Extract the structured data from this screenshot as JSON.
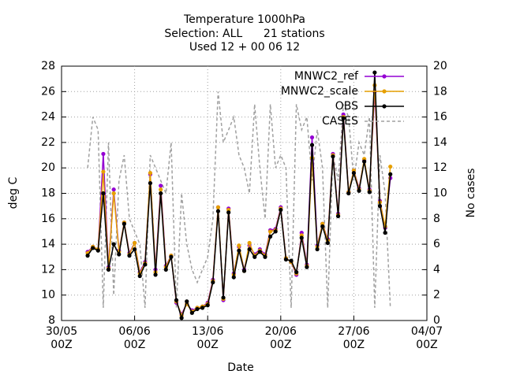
{
  "chart_data": {
    "type": "line",
    "title": [
      "Temperature 1000hPa",
      "Selection: ALL      21 stations",
      "Used 12 + 00 06 12"
    ],
    "xlabel": "Date",
    "ylabel": "deg C",
    "y2label": "No cases",
    "xlim": [
      "30/05 00Z",
      "04/07 00Z"
    ],
    "xticks": [
      {
        "value": "30/05 00Z",
        "label": "30/05\n00Z"
      },
      {
        "value": "06/06 00Z",
        "label": "06/06\n00Z"
      },
      {
        "value": "13/06 00Z",
        "label": "13/06\n00Z"
      },
      {
        "value": "20/06 00Z",
        "label": "20/06\n00Z"
      },
      {
        "value": "27/06 00Z",
        "label": "27/06\n00Z"
      },
      {
        "value": "04/07 00Z",
        "label": "04/07\n00Z"
      }
    ],
    "ylim": [
      8,
      28
    ],
    "yticks": [
      8,
      10,
      12,
      14,
      16,
      18,
      20,
      22,
      24,
      26,
      28
    ],
    "y2lim": [
      0,
      20
    ],
    "y2ticks": [
      0,
      2,
      4,
      6,
      8,
      10,
      12,
      14,
      16,
      18,
      20
    ],
    "grid": true,
    "legend": "top-right",
    "x": [
      "01/06 12Z",
      "02/06 00Z",
      "02/06 12Z",
      "03/06 00Z",
      "03/06 12Z",
      "04/06 00Z",
      "04/06 12Z",
      "05/06 00Z",
      "05/06 12Z",
      "06/06 00Z",
      "06/06 12Z",
      "07/06 00Z",
      "07/06 12Z",
      "08/06 00Z",
      "08/06 12Z",
      "09/06 00Z",
      "09/06 12Z",
      "10/06 00Z",
      "10/06 12Z",
      "11/06 00Z",
      "11/06 12Z",
      "12/06 00Z",
      "12/06 12Z",
      "13/06 00Z",
      "13/06 12Z",
      "14/06 00Z",
      "14/06 12Z",
      "15/06 00Z",
      "15/06 12Z",
      "16/06 00Z",
      "16/06 12Z",
      "17/06 00Z",
      "17/06 12Z",
      "18/06 00Z",
      "18/06 12Z",
      "19/06 00Z",
      "19/06 12Z",
      "20/06 00Z",
      "20/06 12Z",
      "21/06 00Z",
      "21/06 12Z",
      "22/06 00Z",
      "22/06 12Z",
      "23/06 00Z",
      "23/06 12Z",
      "24/06 00Z",
      "24/06 12Z",
      "25/06 00Z",
      "25/06 12Z",
      "26/06 00Z",
      "26/06 12Z",
      "27/06 00Z",
      "27/06 12Z",
      "28/06 00Z",
      "28/06 12Z",
      "29/06 00Z",
      "29/06 12Z",
      "30/06 00Z",
      "30/06 12Z"
    ],
    "series": [
      {
        "name": "MNWC2_ref",
        "color": "#9400d3",
        "dash": false,
        "values": [
          13.4,
          13.8,
          13.6,
          21.1,
          12.2,
          18.3,
          13.5,
          15.7,
          13.3,
          14.1,
          11.8,
          12.6,
          19.5,
          12.0,
          18.6,
          12.3,
          13.1,
          9.4,
          8.5,
          9.3,
          8.8,
          9.0,
          9.1,
          9.4,
          11.2,
          16.9,
          9.6,
          16.8,
          11.7,
          13.8,
          12.0,
          13.9,
          13.2,
          13.6,
          13.2,
          15.1,
          15.2,
          16.9,
          12.9,
          12.6,
          11.6,
          14.9,
          12.4,
          22.4,
          13.9,
          15.6,
          14.4,
          21.1,
          16.4,
          24.2,
          18.1,
          19.8,
          18.4,
          20.6,
          18.3,
          26.0,
          17.4,
          15.3,
          19.2
        ]
      },
      {
        "name": "MNWC2_scale",
        "color": "#e69f00",
        "dash": false,
        "values": [
          13.3,
          13.8,
          13.6,
          19.7,
          12.1,
          18.0,
          13.4,
          15.7,
          13.2,
          14.1,
          11.7,
          12.5,
          19.6,
          11.8,
          18.3,
          12.2,
          13.1,
          9.5,
          8.4,
          9.3,
          8.7,
          9.0,
          9.1,
          9.3,
          11.1,
          16.9,
          9.7,
          16.7,
          11.6,
          13.9,
          11.9,
          14.1,
          13.1,
          13.5,
          13.1,
          15.0,
          15.1,
          16.8,
          12.9,
          12.6,
          11.7,
          14.7,
          12.3,
          20.8,
          13.8,
          15.6,
          14.3,
          21.0,
          16.3,
          24.0,
          18.1,
          19.8,
          18.3,
          20.7,
          18.2,
          26.5,
          17.3,
          15.4,
          20.1
        ]
      },
      {
        "name": "OBS",
        "color": "#000000",
        "dash": false,
        "values": [
          13.1,
          13.7,
          13.5,
          18.0,
          12.0,
          14.0,
          13.2,
          15.6,
          13.1,
          13.6,
          11.5,
          12.4,
          18.8,
          11.6,
          18.0,
          12.0,
          13.0,
          9.6,
          8.2,
          9.5,
          8.6,
          8.9,
          9.0,
          9.2,
          11.0,
          16.6,
          9.8,
          16.5,
          11.4,
          13.5,
          11.9,
          13.6,
          13.0,
          13.4,
          13.0,
          14.6,
          15.0,
          16.7,
          12.8,
          12.7,
          11.8,
          14.5,
          12.2,
          21.8,
          13.6,
          15.4,
          14.1,
          20.9,
          16.2,
          23.9,
          18.0,
          19.6,
          18.2,
          20.5,
          18.1,
          27.5,
          17.0,
          14.9,
          19.5
        ]
      },
      {
        "name": "CASES",
        "color": "#a0a0a0",
        "dash": true,
        "axis": "y2",
        "values": [
          12,
          16,
          15,
          1,
          14,
          2,
          11,
          13,
          8,
          7,
          6,
          1,
          13,
          12,
          11,
          10,
          14,
          1,
          10,
          6,
          4,
          3,
          4,
          5,
          8,
          18,
          14,
          15,
          16,
          13,
          12,
          10,
          17,
          12,
          8,
          17,
          12,
          13,
          12,
          1,
          17,
          15,
          16,
          11,
          15,
          12,
          1,
          13,
          11,
          17,
          16,
          11,
          14,
          13,
          16,
          1,
          13,
          10,
          1
        ]
      }
    ]
  }
}
